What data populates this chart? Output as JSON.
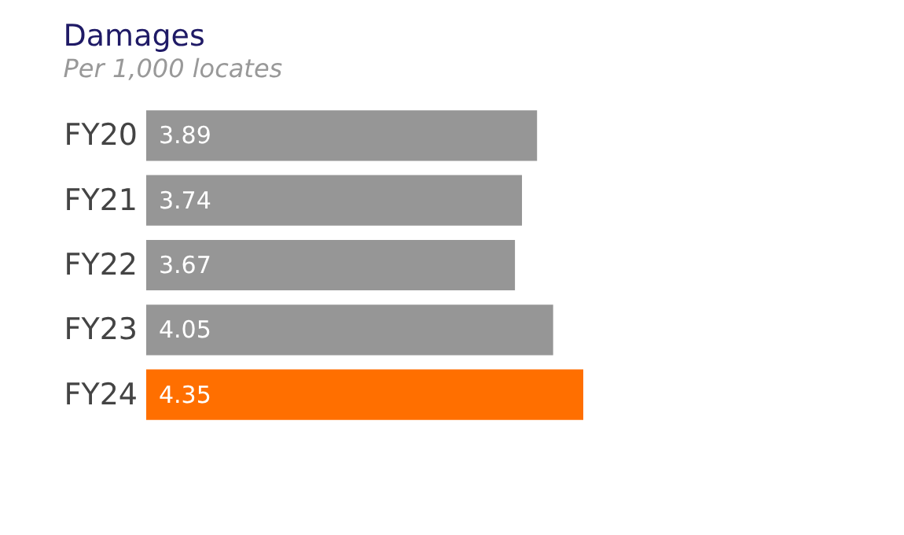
{
  "chart_data": {
    "type": "bar",
    "orientation": "horizontal",
    "title": "Damages",
    "subtitle": "Per 1,000 locates",
    "categories": [
      "FY20",
      "FY21",
      "FY22",
      "FY23",
      "FY24"
    ],
    "values": [
      3.89,
      3.74,
      3.67,
      4.05,
      4.35
    ],
    "colors": [
      "#969696",
      "#969696",
      "#969696",
      "#969696",
      "#ff6f00"
    ],
    "data_labels": true
  }
}
